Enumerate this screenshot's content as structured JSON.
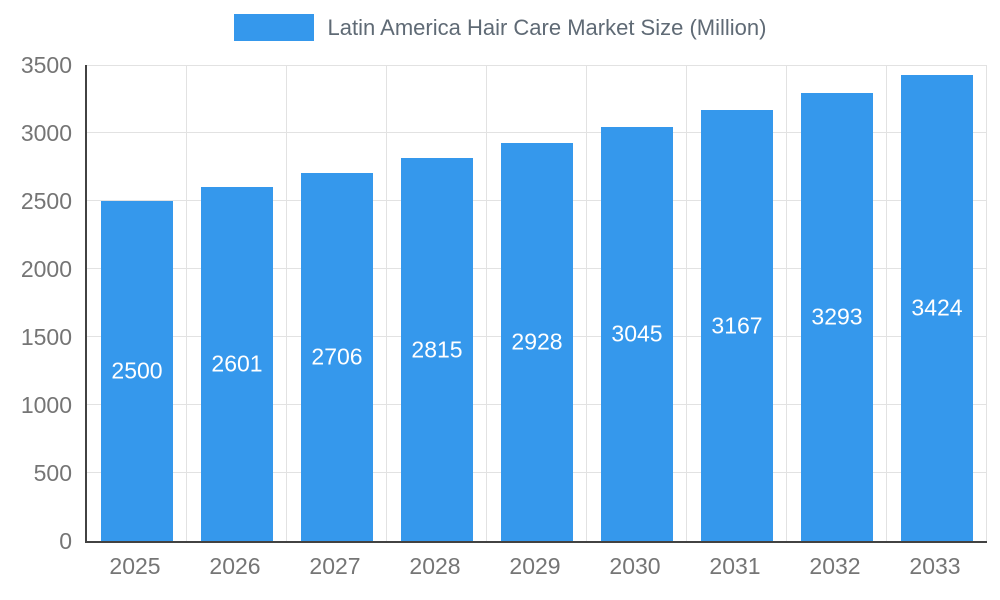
{
  "chart_data": {
    "type": "bar",
    "title": "Latin America Hair Care Market Size (Million)",
    "categories": [
      "2025",
      "2026",
      "2027",
      "2028",
      "2029",
      "2030",
      "2031",
      "2032",
      "2033"
    ],
    "values": [
      2500,
      2601,
      2706,
      2815,
      2928,
      3045,
      3167,
      3293,
      3424
    ],
    "xlabel": "",
    "ylabel": "",
    "ylim": [
      0,
      3500
    ],
    "yticks": [
      0,
      500,
      1000,
      1500,
      2000,
      2500,
      3000,
      3500
    ],
    "grid": true,
    "legend_position": "top-center",
    "bar_color": "#3598EC",
    "value_label_color": "#ffffff",
    "axis_label_color": "#757575",
    "title_color": "#5f6a75"
  }
}
